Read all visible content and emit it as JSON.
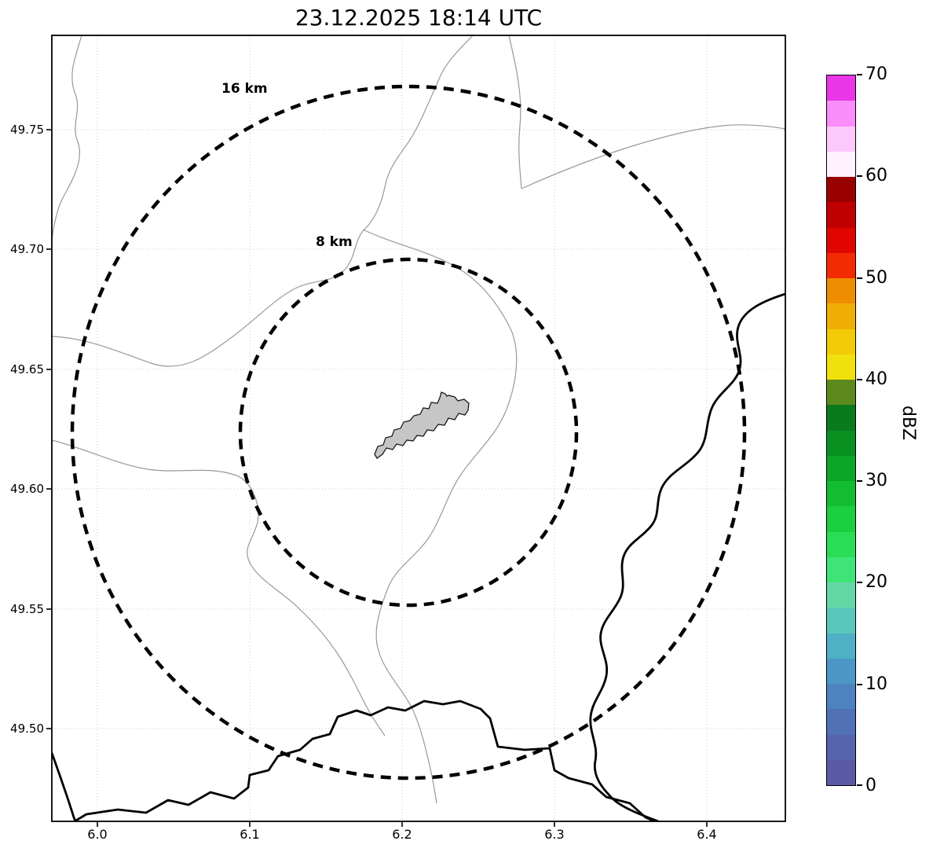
{
  "title": "23.12.2025 18:14 UTC",
  "map": {
    "x_tick_labels": [
      "6.0",
      "6.1",
      "6.2",
      "6.3",
      "6.4"
    ],
    "y_tick_labels": [
      "49.75",
      "49.70",
      "49.65",
      "49.60",
      "49.55",
      "49.50"
    ],
    "range_rings": [
      {
        "label": "16 km"
      },
      {
        "label": "8 km"
      }
    ]
  },
  "colorbar": {
    "label": "dBZ",
    "tick_labels_top_to_bottom": [
      "70",
      "60",
      "50",
      "40",
      "30",
      "20",
      "10",
      "0"
    ],
    "value_min": 0,
    "value_max": 70,
    "segment_colors_bottom_to_top": [
      "#5a5aa5",
      "#5663ad",
      "#5270b6",
      "#4e82c0",
      "#4b97c6",
      "#4fb0c6",
      "#58c8bd",
      "#62d9a5",
      "#3fe477",
      "#2add55",
      "#1ccf3e",
      "#12bd32",
      "#0ca629",
      "#089021",
      "#0b7a1d",
      "#5d8a1d",
      "#f0e10c",
      "#f0cb06",
      "#efae03",
      "#ee8d00",
      "#f22b00",
      "#e00500",
      "#c00000",
      "#990000",
      "#fdf2fd",
      "#fcc9fc",
      "#f98df9",
      "#e836e8"
    ]
  }
}
